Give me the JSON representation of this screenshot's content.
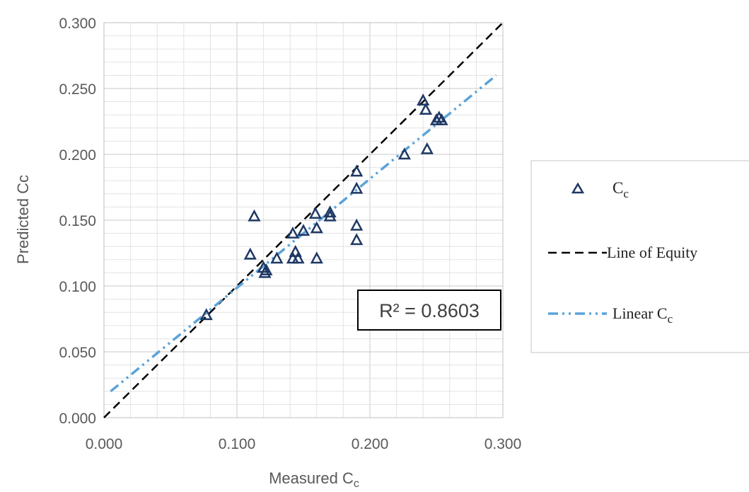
{
  "chart_data": {
    "type": "scatter",
    "xlabel_main": "Measured C",
    "xlabel_sub": "c",
    "ylabel": "Predicted Cc",
    "xlim": [
      0.0,
      0.3
    ],
    "ylim": [
      0.0,
      0.3
    ],
    "x_ticks": [
      "0.000",
      "0.100",
      "0.200",
      "0.300"
    ],
    "y_ticks": [
      "0.000",
      "0.050",
      "0.100",
      "0.150",
      "0.200",
      "0.250",
      "0.300"
    ],
    "grid": true,
    "legend_position": "right",
    "series": [
      {
        "name_main": "C",
        "name_sub": "c",
        "marker": "triangle",
        "color": "#1f3864",
        "points": [
          [
            0.077,
            0.078
          ],
          [
            0.11,
            0.124
          ],
          [
            0.113,
            0.153
          ],
          [
            0.12,
            0.114
          ],
          [
            0.121,
            0.11
          ],
          [
            0.122,
            0.112
          ],
          [
            0.13,
            0.121
          ],
          [
            0.142,
            0.14
          ],
          [
            0.142,
            0.121
          ],
          [
            0.144,
            0.126
          ],
          [
            0.146,
            0.121
          ],
          [
            0.15,
            0.142
          ],
          [
            0.159,
            0.155
          ],
          [
            0.16,
            0.144
          ],
          [
            0.16,
            0.121
          ],
          [
            0.17,
            0.153
          ],
          [
            0.17,
            0.156
          ],
          [
            0.19,
            0.187
          ],
          [
            0.19,
            0.174
          ],
          [
            0.19,
            0.146
          ],
          [
            0.19,
            0.135
          ],
          [
            0.226,
            0.2
          ],
          [
            0.24,
            0.241
          ],
          [
            0.242,
            0.234
          ],
          [
            0.243,
            0.204
          ],
          [
            0.25,
            0.226
          ],
          [
            0.252,
            0.228
          ],
          [
            0.254,
            0.226
          ]
        ]
      },
      {
        "name": "Line of Equity",
        "type": "line",
        "style": "dashed",
        "color": "#000000",
        "x": [
          0.0,
          0.3
        ],
        "y": [
          0.0,
          0.3
        ]
      },
      {
        "name_main": "Linear C",
        "name_sub": "c",
        "type": "line",
        "style": "dash-dot-dot",
        "color": "#5ba3d9",
        "x": [
          0.005,
          0.295
        ],
        "y": [
          0.02,
          0.26
        ]
      }
    ],
    "annotations": [
      "R² = 0.8603"
    ]
  }
}
